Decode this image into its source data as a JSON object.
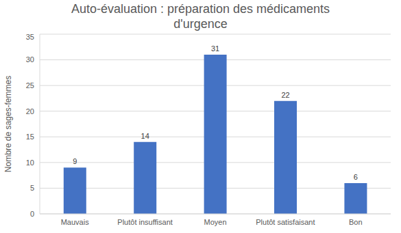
{
  "chart_data": {
    "type": "bar",
    "title": "Auto-évaluation : préparation des médicaments d'urgence",
    "y_label": "Nombre de sages-femmes",
    "categories": [
      "Mauvais",
      "Plutôt insuffisant",
      "Moyen",
      "Plutôt satisfaisant",
      "Bon"
    ],
    "values": [
      9,
      14,
      31,
      22,
      6
    ],
    "color": "#4472c4",
    "ylim": [
      0,
      35
    ],
    "yticks": [
      0,
      5,
      10,
      15,
      20,
      25,
      30,
      35
    ],
    "grid": true,
    "data_labels": true
  }
}
